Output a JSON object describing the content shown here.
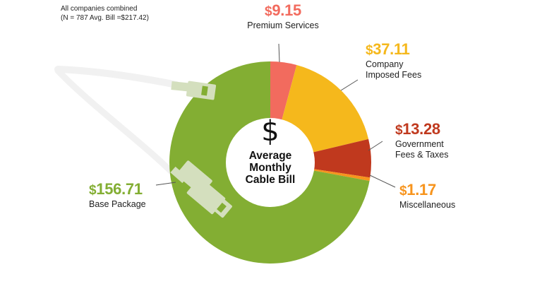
{
  "note": {
    "line1": "All companies combined",
    "line2": "(N = 787 Avg. Bill =$217.42)"
  },
  "center": {
    "icon": "dollar-sign-icon",
    "symbol": "$",
    "line1": "Average",
    "line2": "Monthly",
    "line3": "Cable Bill"
  },
  "labels": {
    "premium": {
      "currency": "$",
      "amount": "9.15",
      "name1": "Premium Services",
      "name2": ""
    },
    "company": {
      "currency": "$",
      "amount": "37.11",
      "name1": "Company",
      "name2": "Imposed Fees"
    },
    "government": {
      "currency": "$",
      "amount": "13.28",
      "name1": "Government",
      "name2": "Fees & Taxes"
    },
    "misc": {
      "currency": "$",
      "amount": "1.17",
      "name1": "Miscellaneous",
      "name2": ""
    },
    "base": {
      "currency": "$",
      "amount": "156.71",
      "name1": "Base Package",
      "name2": ""
    }
  },
  "colors": {
    "premium": "#F26B5E",
    "company": "#F5B81C",
    "government": "#C0391E",
    "misc": "#F7941D",
    "base": "#83AE33",
    "cable": "#D4DFBE",
    "cable_outside": "#F1F1F1"
  },
  "chart_data": {
    "type": "pie",
    "variant": "donut",
    "title": "Average Monthly Cable Bill",
    "subtitle": "All companies combined (N = 787 Avg. Bill =$217.42)",
    "categories": [
      "Premium Services",
      "Company Imposed Fees",
      "Government Fees & Taxes",
      "Miscellaneous",
      "Base Package"
    ],
    "values": [
      9.15,
      37.11,
      13.28,
      1.17,
      156.71
    ],
    "total": 217.42,
    "units": "USD per month",
    "start_angle_deg": 0,
    "direction": "clockwise",
    "colors": [
      "#F26B5E",
      "#F5B81C",
      "#C0391E",
      "#F7941D",
      "#83AE33"
    ],
    "legend": "none (direct labels)"
  }
}
